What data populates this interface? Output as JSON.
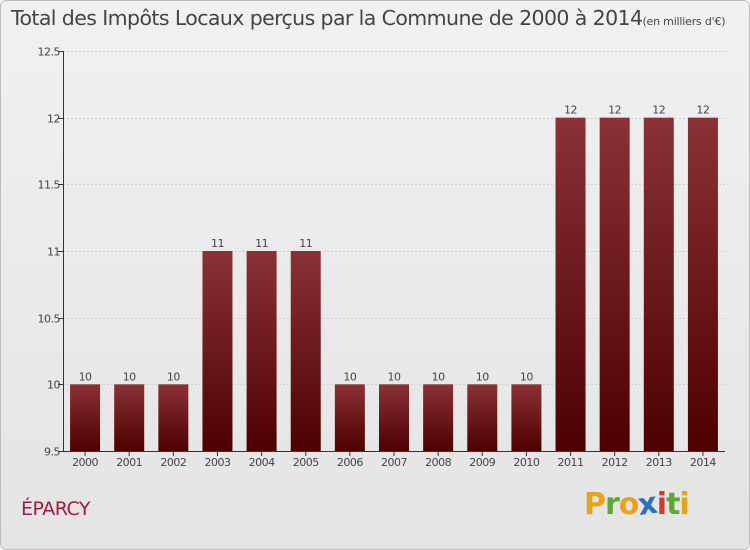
{
  "header": {
    "title": "Total des Impôts Locaux perçus par la Commune de 2000 à 2014",
    "unit": "(en milliers d'€)"
  },
  "commune": {
    "name": "ÉPARCY"
  },
  "logo": {
    "text": "Proxiti",
    "letters": [
      "P",
      "r",
      "o",
      "x",
      "i",
      "t",
      "i"
    ],
    "colors": [
      "#e8a21c",
      "#5da832",
      "#e8a21c",
      "#2e6fc4",
      "#d43a2a",
      "#5da832",
      "#e8a21c"
    ]
  },
  "colors": {
    "bar_top": "#8a3236",
    "bar_bottom": "#4d0000",
    "axis": "#333333",
    "text": "#444444",
    "grid": "#d0d0d0",
    "commune": "#a11a3a"
  },
  "chart_data": {
    "type": "bar",
    "title": "Total des Impôts Locaux perçus par la Commune de 2000 à 2014",
    "ylabel": "en milliers d'€",
    "xlabel": "",
    "categories": [
      "2000",
      "2001",
      "2002",
      "2003",
      "2004",
      "2005",
      "2006",
      "2007",
      "2008",
      "2009",
      "2010",
      "2011",
      "2012",
      "2013",
      "2014"
    ],
    "values": [
      10,
      10,
      10,
      11,
      11,
      11,
      10,
      10,
      10,
      10,
      10,
      12,
      12,
      12,
      12
    ],
    "value_labels": [
      "10",
      "10",
      "10",
      "11",
      "11",
      "11",
      "10",
      "10",
      "10",
      "10",
      "10",
      "12",
      "12",
      "12",
      "12"
    ],
    "ylim": [
      9.5,
      12.5
    ],
    "yticks": [
      9.5,
      10,
      10.5,
      11,
      11.5,
      12,
      12.5
    ],
    "ytick_labels": [
      "9.5",
      "10",
      "10.5",
      "11",
      "11.5",
      "12",
      "12.5"
    ],
    "grid": true
  }
}
